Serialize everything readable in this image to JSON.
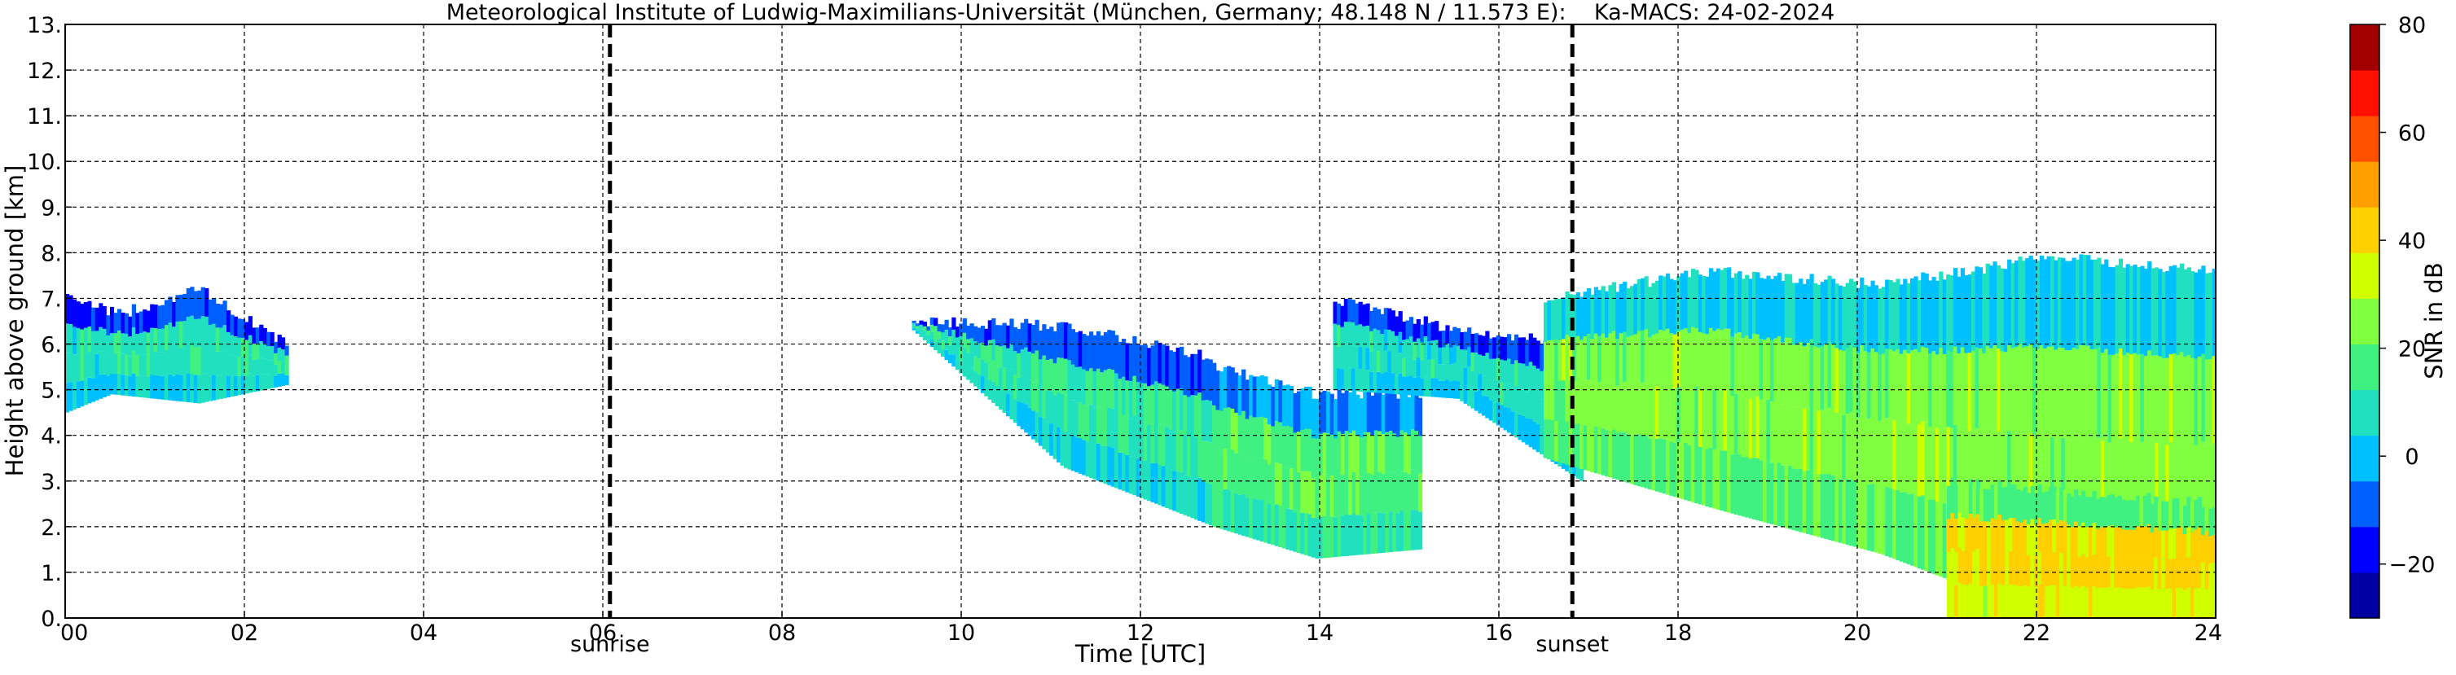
{
  "chart_data": {
    "type": "heatmap",
    "title": "Meteorological Institute of Ludwig-Maximilians-Universität (München, Germany; 48.148 N / 11.573 E):    Ka-MACS: 24-02-2024",
    "xlabel": "Time [UTC]",
    "ylabel": "Height above ground [km]",
    "xlim": [
      0,
      24
    ],
    "ylim": [
      0,
      13
    ],
    "x_ticks": [
      0,
      2,
      4,
      6,
      8,
      10,
      12,
      14,
      16,
      18,
      20,
      22,
      24
    ],
    "x_tick_labels": [
      "00",
      "02",
      "04",
      "06",
      "08",
      "10",
      "12",
      "14",
      "16",
      "18",
      "20",
      "22",
      "24"
    ],
    "y_ticks": [
      0,
      1,
      2,
      3,
      4,
      5,
      6,
      7,
      8,
      9,
      10,
      11,
      12,
      13
    ],
    "y_tick_labels": [
      "0.",
      "1.",
      "2.",
      "3.",
      "4.",
      "5.",
      "6.",
      "7.",
      "8.",
      "9.",
      "10.",
      "11.",
      "12.",
      "13."
    ],
    "grid": true,
    "markers": [
      {
        "label": "sunrise",
        "x": 6.08
      },
      {
        "label": "sunset",
        "x": 16.82
      }
    ],
    "colorbar": {
      "label": "SNR in dB",
      "min": -30,
      "max": 80,
      "ticks": [
        -20,
        0,
        20,
        40,
        60,
        80
      ],
      "tick_labels": [
        "−20",
        "0",
        "20",
        "40",
        "60",
        "80"
      ],
      "colors": [
        "#0000a0",
        "#0000ff",
        "#0060ff",
        "#00c0ff",
        "#20e0c0",
        "#40f080",
        "#80ff40",
        "#d0ff00",
        "#ffd000",
        "#ffa000",
        "#ff5000",
        "#ff1000",
        "#a00000"
      ]
    },
    "echo_regions": [
      {
        "t": [
          0.0,
          0.5
        ],
        "bottom": [
          4.5,
          4.9
        ],
        "top": [
          7.1,
          6.7
        ],
        "snr_mean": 8
      },
      {
        "t": [
          0.5,
          2.45
        ],
        "bottom": [
          4.9,
          4.7,
          5.1
        ],
        "top": [
          6.6,
          7.2,
          6.0
        ],
        "snr_mean": 10
      },
      {
        "t": [
          9.45,
          12.8
        ],
        "bottom": [
          6.3,
          3.3,
          2.0
        ],
        "top": [
          6.5,
          6.4,
          5.7
        ],
        "snr_mean": 12
      },
      {
        "t": [
          12.8,
          15.1
        ],
        "bottom": [
          2.0,
          1.3,
          1.5
        ],
        "top": [
          5.5,
          4.9,
          4.9
        ],
        "snr_mean": 18
      },
      {
        "t": [
          14.15,
          16.9
        ],
        "bottom": [
          5.0,
          4.8,
          3.0
        ],
        "top": [
          7.0,
          6.3,
          6.0
        ],
        "snr_mean": 8
      },
      {
        "t": [
          16.5,
          24.0
        ],
        "bottom": [
          3.5,
          2.4,
          1.4,
          0.0,
          0.0
        ],
        "top": [
          7.0,
          7.6,
          7.3,
          7.9,
          7.6
        ],
        "snr_mean": 25
      },
      {
        "t": [
          21.0,
          24.0
        ],
        "bottom": [
          0.0,
          0.0
        ],
        "top": [
          3.0,
          2.5
        ],
        "snr_mean": 40
      }
    ]
  }
}
